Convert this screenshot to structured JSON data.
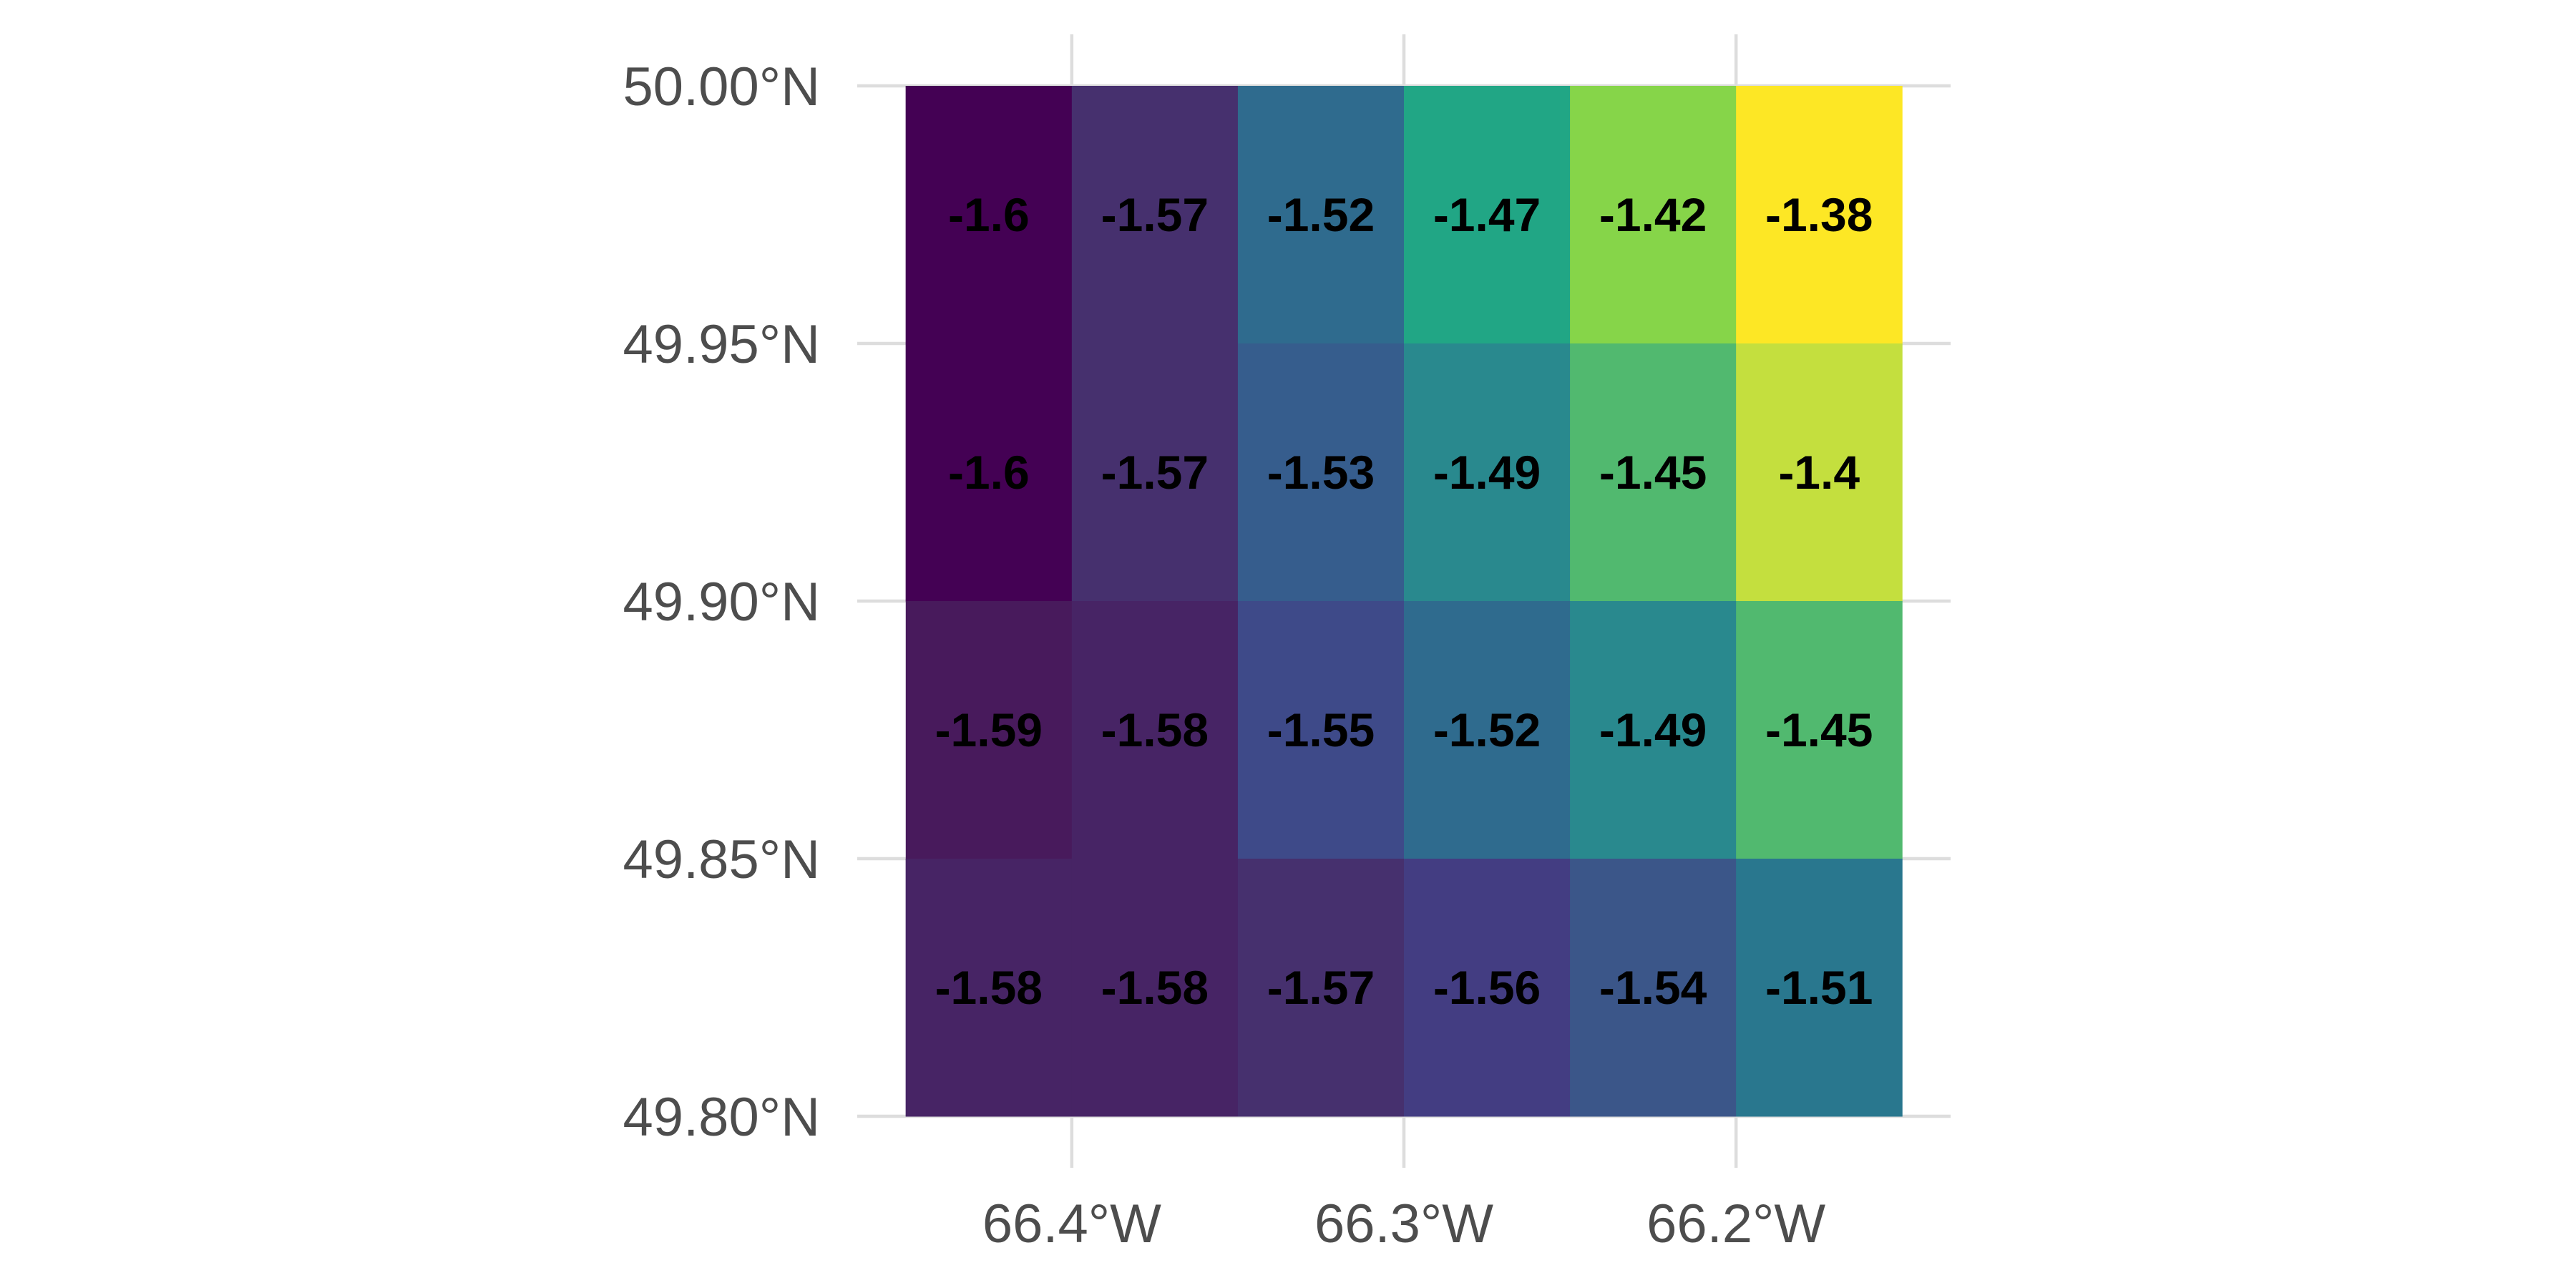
{
  "chart_data": {
    "type": "heatmap",
    "title": "",
    "xlabel": "",
    "ylabel": "",
    "x_ticks": [
      {
        "value": -66.4,
        "label": "66.4°W"
      },
      {
        "value": -66.3,
        "label": "66.3°W"
      },
      {
        "value": -66.2,
        "label": "66.2°W"
      }
    ],
    "y_ticks": [
      {
        "value": 50.0,
        "label": "50.00°N"
      },
      {
        "value": 49.95,
        "label": "49.95°N"
      },
      {
        "value": 49.9,
        "label": "49.90°N"
      },
      {
        "value": 49.85,
        "label": "49.85°N"
      },
      {
        "value": 49.8,
        "label": "49.80°N"
      }
    ],
    "xlim": [
      -66.4646,
      -66.1354
    ],
    "ylim": [
      49.8,
      50.0
    ],
    "grid": true,
    "legend": "none",
    "color_scale": "viridis",
    "cells": [
      {
        "x0": -66.45,
        "x1": -66.35,
        "y0": 49.9,
        "y1": 50.0,
        "value": -1.6,
        "label": "",
        "color": "#440154"
      },
      {
        "x0": -66.45,
        "x1": -66.35,
        "y0": 49.8,
        "y1": 49.85,
        "value": -1.58,
        "label": "",
        "color": "#472465"
      },
      {
        "x0": -66.35,
        "x1": -66.25,
        "y0": 49.8,
        "y1": 49.85,
        "value": -1.57,
        "label": "",
        "color": "#46306e"
      },
      {
        "x0": -66.45,
        "x1": -66.4,
        "y0": 49.95,
        "y1": 50.0,
        "value": -1.6,
        "label": "-1.6",
        "color": "#440154"
      },
      {
        "x0": -66.4,
        "x1": -66.35,
        "y0": 49.95,
        "y1": 50.0,
        "value": -1.57,
        "label": "-1.57",
        "color": "#46306e"
      },
      {
        "x0": -66.35,
        "x1": -66.3,
        "y0": 49.95,
        "y1": 50.0,
        "value": -1.52,
        "label": "-1.52",
        "color": "#2f6b8e"
      },
      {
        "x0": -66.3,
        "x1": -66.25,
        "y0": 49.95,
        "y1": 50.0,
        "value": -1.47,
        "label": "-1.47",
        "color": "#21a685"
      },
      {
        "x0": -66.25,
        "x1": -66.2,
        "y0": 49.95,
        "y1": 50.0,
        "value": -1.42,
        "label": "-1.42",
        "color": "#86d549"
      },
      {
        "x0": -66.2,
        "x1": -66.15,
        "y0": 49.95,
        "y1": 50.0,
        "value": -1.38,
        "label": "-1.38",
        "color": "#fde725"
      },
      {
        "x0": -66.45,
        "x1": -66.4,
        "y0": 49.9,
        "y1": 49.95,
        "value": -1.6,
        "label": "-1.6",
        "color": "#440154"
      },
      {
        "x0": -66.4,
        "x1": -66.35,
        "y0": 49.9,
        "y1": 49.95,
        "value": -1.57,
        "label": "-1.57",
        "color": "#46306e"
      },
      {
        "x0": -66.35,
        "x1": -66.3,
        "y0": 49.9,
        "y1": 49.95,
        "value": -1.53,
        "label": "-1.53",
        "color": "#365d8d"
      },
      {
        "x0": -66.3,
        "x1": -66.25,
        "y0": 49.9,
        "y1": 49.95,
        "value": -1.49,
        "label": "-1.49",
        "color": "#29898e"
      },
      {
        "x0": -66.25,
        "x1": -66.2,
        "y0": 49.9,
        "y1": 49.95,
        "value": -1.45,
        "label": "-1.45",
        "color": "#51b96f"
      },
      {
        "x0": -66.2,
        "x1": -66.15,
        "y0": 49.9,
        "y1": 49.95,
        "value": -1.4,
        "label": "-1.4",
        "color": "#c4df3e"
      },
      {
        "x0": -66.45,
        "x1": -66.4,
        "y0": 49.85,
        "y1": 49.9,
        "value": -1.59,
        "label": "-1.59",
        "color": "#481a5c"
      },
      {
        "x0": -66.4,
        "x1": -66.35,
        "y0": 49.85,
        "y1": 49.9,
        "value": -1.58,
        "label": "-1.58",
        "color": "#472465"
      },
      {
        "x0": -66.35,
        "x1": -66.3,
        "y0": 49.85,
        "y1": 49.9,
        "value": -1.55,
        "label": "-1.55",
        "color": "#3e4a89"
      },
      {
        "x0": -66.3,
        "x1": -66.25,
        "y0": 49.85,
        "y1": 49.9,
        "value": -1.52,
        "label": "-1.52",
        "color": "#2f6b8e"
      },
      {
        "x0": -66.25,
        "x1": -66.2,
        "y0": 49.85,
        "y1": 49.9,
        "value": -1.49,
        "label": "-1.49",
        "color": "#29898e"
      },
      {
        "x0": -66.2,
        "x1": -66.15,
        "y0": 49.85,
        "y1": 49.9,
        "value": -1.45,
        "label": "-1.45",
        "color": "#51b96f"
      },
      {
        "x0": -66.45,
        "x1": -66.4,
        "y0": 49.8,
        "y1": 49.85,
        "value": -1.58,
        "label": "-1.58",
        "color": "#472465"
      },
      {
        "x0": -66.4,
        "x1": -66.35,
        "y0": 49.8,
        "y1": 49.85,
        "value": -1.58,
        "label": "-1.58",
        "color": "#472465"
      },
      {
        "x0": -66.35,
        "x1": -66.3,
        "y0": 49.8,
        "y1": 49.85,
        "value": -1.57,
        "label": "-1.57",
        "color": "#46306e"
      },
      {
        "x0": -66.3,
        "x1": -66.25,
        "y0": 49.8,
        "y1": 49.85,
        "value": -1.56,
        "label": "-1.56",
        "color": "#433d82"
      },
      {
        "x0": -66.25,
        "x1": -66.2,
        "y0": 49.8,
        "y1": 49.85,
        "value": -1.54,
        "label": "-1.54",
        "color": "#3b5689"
      },
      {
        "x0": -66.2,
        "x1": -66.15,
        "y0": 49.8,
        "y1": 49.85,
        "value": -1.51,
        "label": "-1.51",
        "color": "#29778e"
      }
    ]
  }
}
